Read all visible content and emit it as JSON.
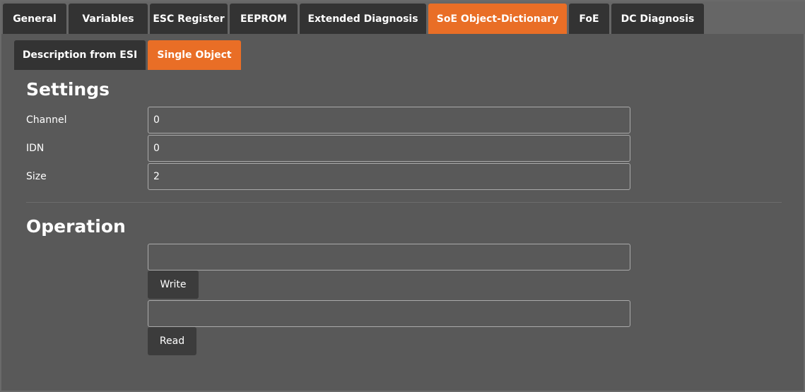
{
  "tabs": [
    {
      "label": "General"
    },
    {
      "label": "Variables"
    },
    {
      "label": "ESC Register"
    },
    {
      "label": "EEPROM"
    },
    {
      "label": "Extended Diagnosis"
    },
    {
      "label": "SoE Object-Dictionary",
      "active": true
    },
    {
      "label": "FoE"
    },
    {
      "label": "DC Diagnosis"
    }
  ],
  "subtabs": [
    {
      "label": "Description from ESI"
    },
    {
      "label": "Single Object",
      "active": true
    }
  ],
  "settings": {
    "title": "Settings",
    "fields": [
      {
        "label": "Channel",
        "value": "0"
      },
      {
        "label": "IDN",
        "value": "0"
      },
      {
        "label": "Size",
        "value": "2"
      }
    ]
  },
  "operation": {
    "title": "Operation",
    "write_value": "",
    "write_label": "Write",
    "read_value": "",
    "read_label": "Read"
  },
  "colors": {
    "accent": "#e96e26",
    "tab": "#333333",
    "background": "#595959"
  }
}
